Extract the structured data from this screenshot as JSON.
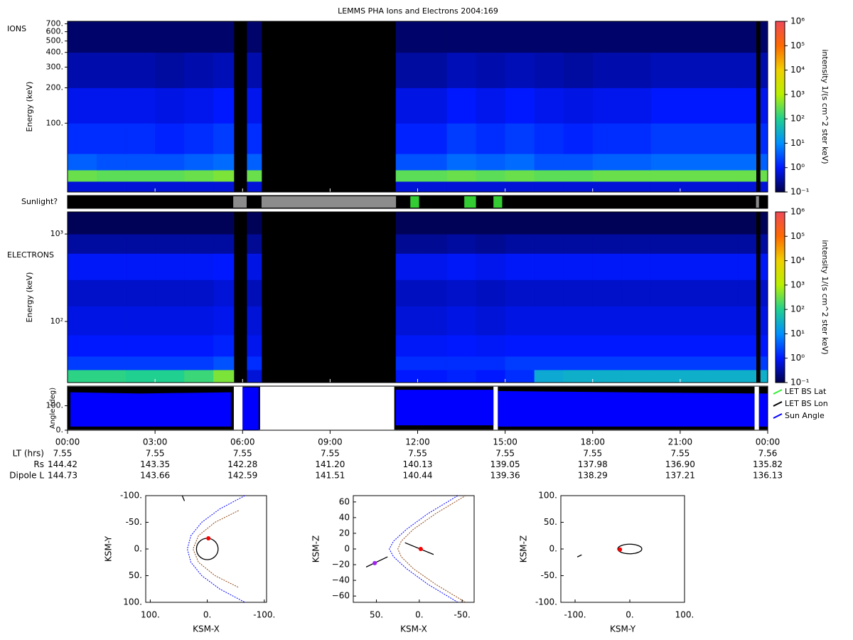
{
  "title": "LEMMS PHA Ions and Electrons  2004:169",
  "time_axis": {
    "xlim": [
      0,
      24
    ],
    "xticks": [
      {
        "value": 0,
        "label": "00:00"
      },
      {
        "value": 3,
        "label": "03:00"
      },
      {
        "value": 6,
        "label": "06:00"
      },
      {
        "value": 9,
        "label": "09:00"
      },
      {
        "value": 12,
        "label": "12:00"
      },
      {
        "value": 15,
        "label": "15:00"
      },
      {
        "value": 18,
        "label": "18:00"
      },
      {
        "value": 21,
        "label": "21:00"
      },
      {
        "value": 24,
        "label": "00:00"
      }
    ],
    "rows": [
      {
        "name": "LT (hrs)",
        "values": [
          "7.55",
          "7.55",
          "7.55",
          "7.55",
          "7.55",
          "7.55",
          "7.55",
          "7.55",
          "7.56"
        ]
      },
      {
        "name": "Rs",
        "values": [
          "144.42",
          "143.35",
          "142.28",
          "141.20",
          "140.13",
          "139.05",
          "137.98",
          "136.90",
          "135.82"
        ]
      },
      {
        "name": "Dipole L",
        "values": [
          "144.73",
          "143.66",
          "142.59",
          "141.51",
          "140.44",
          "139.36",
          "138.29",
          "137.21",
          "136.13"
        ]
      }
    ]
  },
  "colorbar": {
    "label": "intensity 1/(s cm^2 ster keV)",
    "lim": [
      0.1,
      1000000
    ],
    "ticks": [
      {
        "value": 0.1,
        "label": "10⁻¹"
      },
      {
        "value": 1,
        "label": "10⁰"
      },
      {
        "value": 10,
        "label": "10¹"
      },
      {
        "value": 100,
        "label": "10²"
      },
      {
        "value": 1000,
        "label": "10³"
      },
      {
        "value": 10000,
        "label": "10⁴"
      },
      {
        "value": 100000,
        "label": "10⁵"
      },
      {
        "value": 1000000,
        "label": "10⁶"
      }
    ],
    "colormap": [
      "#00004a",
      "#0018ff",
      "#0090ff",
      "#20d090",
      "#b8f000",
      "#f0d000",
      "#ff6a00",
      "#f04858"
    ]
  },
  "chart_data": [
    {
      "type": "heatmap",
      "label": "IONS",
      "ylabel": "Energy (keV)",
      "log_y": true,
      "ylim": [
        26,
        735
      ],
      "yticks": [
        {
          "value": 100,
          "label": "100."
        },
        {
          "value": 200,
          "label": "200."
        },
        {
          "value": 300,
          "label": "300."
        },
        {
          "value": 400,
          "label": "400."
        },
        {
          "value": 500,
          "label": "500."
        },
        {
          "value": 600,
          "label": "600."
        },
        {
          "value": 700,
          "label": "700."
        }
      ],
      "x_bins": [
        0,
        1,
        2,
        3,
        4,
        5,
        5.7,
        6.15,
        6.65,
        11.25,
        12,
        13,
        14,
        15,
        16,
        17,
        18,
        19,
        20,
        21,
        22,
        23,
        23.6,
        23.75,
        24
      ],
      "y_bins": [
        26,
        32,
        40,
        55,
        100,
        200,
        400,
        735
      ],
      "z": [
        [
          0.6,
          0.6,
          0.6,
          0.6,
          0.6,
          0.6,
          null,
          0.6,
          null,
          0.6,
          0.6,
          0.6,
          0.6,
          0.6,
          0.6,
          0.6,
          0.6,
          0.6,
          0.6,
          0.6,
          0.6,
          0.6,
          null,
          0.6
        ],
        [
          300,
          250,
          250,
          250,
          300,
          400,
          null,
          300,
          null,
          250,
          250,
          300,
          250,
          300,
          250,
          250,
          300,
          300,
          300,
          300,
          300,
          300,
          null,
          300
        ],
        [
          4,
          3,
          3,
          3,
          4,
          5,
          null,
          4,
          null,
          3,
          3,
          5,
          4,
          5,
          3,
          3,
          4,
          4,
          5,
          5,
          5,
          5,
          null,
          4
        ],
        [
          1.5,
          1.5,
          1.5,
          1.2,
          1.5,
          2,
          null,
          1.5,
          null,
          1.2,
          1.2,
          2,
          1.5,
          2,
          1.5,
          1.2,
          1.5,
          1.5,
          2,
          2,
          2,
          2,
          null,
          1.5
        ],
        [
          0.8,
          0.8,
          0.8,
          0.7,
          0.8,
          1,
          null,
          0.8,
          null,
          0.7,
          0.7,
          1,
          0.8,
          1,
          0.8,
          0.7,
          0.8,
          0.8,
          1,
          1,
          1,
          1,
          null,
          0.8
        ],
        [
          0.35,
          0.35,
          0.35,
          0.3,
          0.35,
          0.4,
          null,
          0.35,
          null,
          0.3,
          0.3,
          0.4,
          0.35,
          0.4,
          0.35,
          0.3,
          0.35,
          0.35,
          0.4,
          0.4,
          0.4,
          0.4,
          null,
          0.35
        ],
        [
          0.15,
          0.15,
          0.15,
          0.15,
          0.15,
          0.15,
          null,
          0.15,
          null,
          0.15,
          0.15,
          0.15,
          0.15,
          0.15,
          0.15,
          0.15,
          0.15,
          0.15,
          0.15,
          0.15,
          0.15,
          0.15,
          null,
          0.15
        ]
      ]
    },
    {
      "type": "timeline",
      "label": "Sunlight?",
      "start": [
        5.68,
        6.65,
        11.75,
        13.6,
        14.6,
        23.6
      ],
      "end": [
        6.14,
        11.26,
        12.05,
        14.0,
        14.9,
        23.7
      ],
      "colors": [
        "#8c8c8c",
        "#8c8c8c",
        "#33cc33",
        "#33cc33",
        "#33cc33",
        "#8c8c8c"
      ]
    },
    {
      "type": "heatmap",
      "label": "ELECTRONS",
      "ylabel": "Energy (keV)",
      "log_y": true,
      "ylim": [
        20,
        1790
      ],
      "yticks": [
        {
          "value": 100,
          "label": "10²"
        },
        {
          "value": 1000,
          "label": "10³"
        }
      ],
      "x_bins": [
        0,
        1,
        2,
        3,
        4,
        5,
        5.7,
        6.15,
        6.65,
        11.25,
        12,
        13,
        14,
        15,
        16,
        17,
        18,
        19,
        20,
        21,
        22,
        23,
        23.6,
        23.75,
        24
      ],
      "y_bins": [
        20,
        28,
        40,
        70,
        150,
        300,
        600,
        1000,
        1790
      ],
      "z": [
        [
          120,
          120,
          100,
          100,
          150,
          400,
          null,
          0.6,
          null,
          1,
          1,
          1.2,
          1,
          1.5,
          25,
          30,
          30,
          30,
          30,
          30,
          30,
          30,
          null,
          30
        ],
        [
          2,
          2,
          2,
          2,
          2,
          3,
          null,
          1.5,
          null,
          1.5,
          1.5,
          1.5,
          1.5,
          2,
          2,
          2,
          2,
          2,
          2,
          2,
          2,
          2,
          null,
          2
        ],
        [
          1,
          1,
          1,
          1,
          1,
          1.2,
          null,
          0.8,
          null,
          0.9,
          0.9,
          1,
          0.9,
          1,
          1,
          1,
          1,
          1,
          1,
          1,
          1,
          1,
          null,
          1
        ],
        [
          0.7,
          0.7,
          0.7,
          0.7,
          0.7,
          0.8,
          null,
          0.6,
          null,
          0.6,
          0.6,
          0.7,
          0.6,
          0.7,
          0.7,
          0.7,
          0.7,
          0.7,
          0.7,
          0.7,
          0.7,
          0.7,
          null,
          0.7
        ],
        [
          0.5,
          0.5,
          0.5,
          0.5,
          0.5,
          0.6,
          null,
          0.4,
          null,
          0.45,
          0.45,
          0.5,
          0.45,
          0.5,
          0.5,
          0.5,
          0.5,
          0.5,
          0.5,
          0.5,
          0.5,
          0.5,
          null,
          0.5
        ],
        [
          0.9,
          0.9,
          0.9,
          0.9,
          0.9,
          1,
          null,
          0.7,
          null,
          0.8,
          0.8,
          0.9,
          0.8,
          0.9,
          0.9,
          0.9,
          0.9,
          0.9,
          0.9,
          0.9,
          0.9,
          0.9,
          null,
          0.9
        ],
        [
          0.3,
          0.3,
          0.3,
          0.3,
          0.3,
          0.3,
          null,
          0.25,
          null,
          0.25,
          0.25,
          0.3,
          0.25,
          0.3,
          0.3,
          0.3,
          0.3,
          0.3,
          0.3,
          0.3,
          0.3,
          0.3,
          null,
          0.3
        ],
        [
          0.12,
          0.12,
          0.12,
          0.12,
          0.12,
          0.12,
          null,
          0.12,
          null,
          0.12,
          0.12,
          0.12,
          0.12,
          0.12,
          0.12,
          0.12,
          0.12,
          0.12,
          0.12,
          0.12,
          0.12,
          0.12,
          null,
          0.12
        ]
      ]
    },
    {
      "type": "band",
      "ylabel": "Angle (deg)",
      "ylim": [
        0,
        180
      ],
      "yticks": [
        {
          "value": 0,
          "label": "0."
        },
        {
          "value": 100,
          "label": "100."
        }
      ],
      "series": [
        {
          "name": "LET BS Lat",
          "color": "#33ee33"
        },
        {
          "name": "LET BS Lon",
          "color": "#000000",
          "x": [
            0,
            5.7,
            5.8,
            6.0,
            6.6,
            6.7,
            11.2,
            14.6,
            14.68,
            14.75,
            23.55,
            23.62,
            23.7,
            24
          ],
          "low": [
            2,
            2,
            null,
            2,
            2,
            null,
            2,
            2,
            null,
            2,
            2,
            null,
            2,
            2
          ],
          "high": [
            178,
            178,
            null,
            178,
            178,
            null,
            178,
            178,
            null,
            178,
            178,
            null,
            178,
            178
          ]
        },
        {
          "name": "Sun Angle",
          "color": "#0000ff",
          "x": [
            0.1,
            2.5,
            5.6,
            5.8,
            6.0,
            6.55,
            9.0,
            11.25,
            14.6,
            14.68,
            14.75,
            23.55,
            23.62,
            23.7,
            24
          ],
          "low": [
            15,
            15,
            15,
            null,
            0,
            0,
            null,
            20,
            20,
            null,
            15,
            15,
            null,
            15,
            15
          ],
          "high": [
            155,
            150,
            155,
            null,
            175,
            175,
            null,
            165,
            165,
            null,
            160,
            150,
            null,
            150,
            150
          ]
        }
      ]
    },
    {
      "type": "orbit",
      "xlabel": "KSM-X",
      "ylabel": "KSM-Y",
      "xlim": [
        108,
        -104
      ],
      "ylim": [
        100,
        -100
      ],
      "xticks": [
        {
          "value": 100,
          "label": "100."
        },
        {
          "value": 0,
          "label": "0."
        },
        {
          "value": -100,
          "label": "-100."
        }
      ],
      "yticks": [
        {
          "value": -100,
          "label": "-100."
        },
        {
          "value": -50,
          "label": "-50."
        },
        {
          "value": 0,
          "label": "0."
        },
        {
          "value": 50,
          "label": "50."
        },
        {
          "value": 100,
          "label": "100."
        }
      ],
      "series": [
        {
          "color": "#0000ff",
          "x": [
            -66,
            -21.8,
            9.75,
            28.7,
            35,
            28.7,
            9.75,
            -21.8,
            -66
          ],
          "y": [
            -100,
            -75,
            -50,
            -25,
            0,
            25,
            50,
            75,
            100
          ]
        },
        {
          "color": "#8b4513",
          "x": [
            -54.8,
            -13.5,
            15.4,
            25,
            15.4,
            -13.5,
            -54.8
          ],
          "y": [
            -72,
            -50,
            -25,
            0,
            25,
            50,
            72
          ]
        },
        {
          "color": "#000000",
          "x": [
            44,
            40
          ],
          "y": [
            -100,
            -90
          ]
        }
      ],
      "ellipses": [
        {
          "x": 0,
          "y": 0,
          "rx": 19,
          "ry": 20
        }
      ],
      "points": [
        {
          "x": -2,
          "y": -20,
          "color": "#ff0000"
        }
      ]
    },
    {
      "type": "orbit",
      "xlabel": "KSM-X",
      "ylabel": "KSM-Z",
      "xlim": [
        77,
        -64
      ],
      "ylim": [
        -68,
        68
      ],
      "xticks": [
        {
          "value": 50,
          "label": "50."
        },
        {
          "value": 0,
          "label": "0."
        },
        {
          "value": -50,
          "label": "-50."
        }
      ],
      "yticks": [
        {
          "value": -60,
          "label": "−60"
        },
        {
          "value": -40,
          "label": "−40"
        },
        {
          "value": -20,
          "label": "−20"
        },
        0,
        20,
        40,
        60
      ],
      "series": [
        {
          "color": "#0000ff",
          "x": [
            -45,
            -10,
            15,
            30,
            35,
            30,
            15,
            -10,
            -45
          ],
          "y": [
            -68,
            -45,
            -25,
            -10,
            0,
            10,
            25,
            45,
            68
          ]
        },
        {
          "color": "#8b4513",
          "x": [
            -54,
            -19,
            7,
            21,
            25,
            21,
            7,
            -19,
            -54
          ],
          "y": [
            -68,
            -45,
            -25,
            -10,
            0,
            10,
            25,
            45,
            68
          ]
        },
        {
          "color": "#000000",
          "x": [
            16.7,
            -16.7
          ],
          "y": [
            8,
            -7
          ]
        },
        {
          "color": "#000000",
          "x": [
            62,
            37
          ],
          "y": [
            -23,
            -10
          ]
        }
      ],
      "ellipses": [],
      "points": [
        {
          "x": -1.7,
          "y": 0,
          "color": "#ff0000"
        },
        {
          "x": 52,
          "y": -18,
          "color": "#a020f0"
        }
      ]
    },
    {
      "type": "orbit",
      "xlabel": "KSM-Y",
      "ylabel": "KSM-Z",
      "xlim": [
        -126,
        100
      ],
      "ylim": [
        -100,
        100
      ],
      "xticks": [
        {
          "value": -100,
          "label": "-100."
        },
        {
          "value": 0,
          "label": "0."
        },
        {
          "value": 100,
          "label": "100."
        }
      ],
      "yticks": [
        {
          "value": -100,
          "label": "-100."
        },
        {
          "value": -50,
          "label": "-50."
        },
        {
          "value": 0,
          "label": "0."
        },
        {
          "value": 50,
          "label": "50."
        },
        {
          "value": 100,
          "label": "100."
        }
      ],
      "series": [
        {
          "color": "#000000",
          "x": [
            -96,
            -88
          ],
          "y": [
            -15,
            -11
          ]
        }
      ],
      "ellipses": [
        {
          "x": 0,
          "y": 0,
          "rx": 22,
          "ry": 9
        }
      ],
      "points": [
        {
          "x": -18,
          "y": -1,
          "color": "#ff0000"
        }
      ]
    }
  ]
}
